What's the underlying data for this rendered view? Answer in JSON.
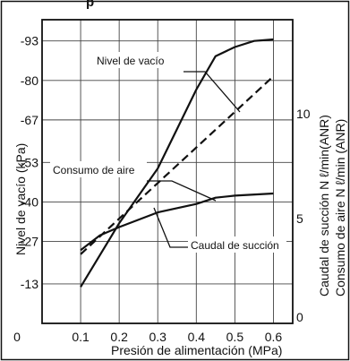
{
  "chart_data": {
    "type": "line",
    "cropped_title": "p",
    "xlabel": "Presión de alimentación (MPa)",
    "ylabel_left": "Nivel de vacío (kPa)",
    "ylabel_right_1": "Caudal de succión N ℓ/min(ANR)",
    "ylabel_right_2": "Consumo de aire N ℓ/min (ANR)",
    "x_ticks": [
      "0",
      "0.1",
      "0.2",
      "0.3",
      "0.4",
      "0.5",
      "0.6"
    ],
    "x_values": [
      0,
      0.1,
      0.2,
      0.3,
      0.4,
      0.5,
      0.6
    ],
    "xlim": [
      0,
      0.65
    ],
    "y_left_ticks": [
      "-93",
      "-80",
      "-67",
      "-53",
      "-40",
      "-27",
      "-13"
    ],
    "y_left_values": [
      -93,
      -80,
      -67,
      -53,
      -40,
      -27,
      -13
    ],
    "ylim_left": [
      0,
      -100
    ],
    "y_right_ticks": [
      "10",
      "5",
      "0"
    ],
    "y_right_values": [
      10,
      5,
      0
    ],
    "ylim_right": [
      0,
      14.5
    ],
    "grid": true,
    "series": [
      {
        "name": "Nivel de vacío",
        "axis": "left",
        "style": "solid",
        "x": [
          0.1,
          0.2,
          0.3,
          0.35,
          0.4,
          0.45,
          0.5,
          0.55,
          0.6
        ],
        "y": [
          -12,
          -33,
          -51,
          -64,
          -77,
          -88,
          -91,
          -93,
          -93.5
        ]
      },
      {
        "name": "Consumo de aire",
        "axis": "right",
        "style": "dashed",
        "x": [
          0.1,
          0.6
        ],
        "y": [
          3.3,
          11.8
        ]
      },
      {
        "name": "Caudal de succión",
        "axis": "right",
        "style": "solid",
        "x": [
          0.1,
          0.15,
          0.2,
          0.3,
          0.4,
          0.45,
          0.5,
          0.6
        ],
        "y": [
          3.5,
          4.2,
          4.6,
          5.3,
          5.7,
          6.0,
          6.1,
          6.2
        ]
      }
    ]
  }
}
